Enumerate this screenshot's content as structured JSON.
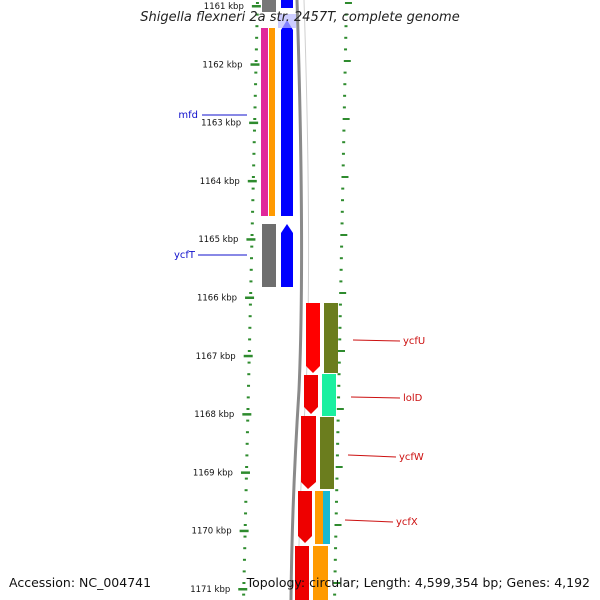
{
  "title": "Shigella flexneri 2a str. 2457T, complete genome",
  "footer": {
    "accession": "Accession: NC_004741",
    "topology": "Topology: circular; Length: 4,599,354 bp; Genes: 4,192"
  },
  "colors": {
    "ruler_dots": "#2e8b2e",
    "backbone": "#888888",
    "left_label": "#1010cc",
    "right_label": "#cc1010"
  },
  "ruler": {
    "ticks": [
      "1161 kbp",
      "1162 kbp",
      "1163 kbp",
      "1164 kbp",
      "1165 kbp",
      "1166 kbp",
      "1167 kbp",
      "1168 kbp",
      "1169 kbp",
      "1170 kbp",
      "1171 kbp"
    ]
  },
  "genes": {
    "left": [
      {
        "name": "mfd",
        "color": "#0000ff"
      },
      {
        "name": "ycfT",
        "color": "#0000ff"
      }
    ],
    "right": [
      {
        "name": "ycfU",
        "color": "#ff0000"
      },
      {
        "name": "lolD",
        "color": "#ff0000"
      },
      {
        "name": "ycfW",
        "color": "#ff0000"
      },
      {
        "name": "ycfX",
        "color": "#ff0000"
      }
    ]
  }
}
